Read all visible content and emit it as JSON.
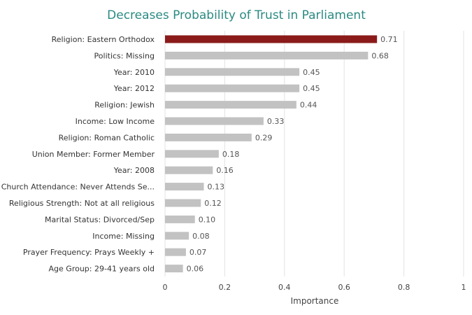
{
  "colors": {
    "title": "#2a8a82",
    "highlight_bar": "#8b1a1a",
    "bar": "#c2c2c2",
    "grid": "#e3e3e3",
    "background": "#ffffff"
  },
  "chart_data": {
    "type": "bar",
    "orientation": "horizontal",
    "title": "Decreases Probability of Trust in Parliament",
    "xlabel": "Importance",
    "ylabel": "",
    "xlim": [
      0,
      1
    ],
    "xticks": [
      "0",
      "0.2",
      "0.4",
      "0.6",
      "0.8",
      "1"
    ],
    "xtick_values": [
      0,
      0.2,
      0.4,
      0.6,
      0.8,
      1
    ],
    "grid": "vertical",
    "legend": "none",
    "highlight_index": 0,
    "categories": [
      "Religion: Eastern Orthodox",
      "Politics: Missing",
      "Year: 2010",
      "Year: 2012",
      "Religion: Jewish",
      "Income: Low Income",
      "Religion: Roman Catholic",
      "Union Member: Former Member",
      "Year: 2008",
      "Church Attendance: Never Attends Se...",
      "Religious Strength: Not at all religious",
      "Marital Status: Divorced/Sep",
      "Income: Missing",
      "Prayer Frequency: Prays Weekly +",
      "Age Group: 29-41 years old"
    ],
    "values": [
      0.71,
      0.68,
      0.45,
      0.45,
      0.44,
      0.33,
      0.29,
      0.18,
      0.16,
      0.13,
      0.12,
      0.1,
      0.08,
      0.07,
      0.06
    ],
    "value_labels": [
      "0.71",
      "0.68",
      "0.45",
      "0.45",
      "0.44",
      "0.33",
      "0.29",
      "0.18",
      "0.16",
      "0.13",
      "0.12",
      "0.10",
      "0.08",
      "0.07",
      "0.06"
    ]
  }
}
